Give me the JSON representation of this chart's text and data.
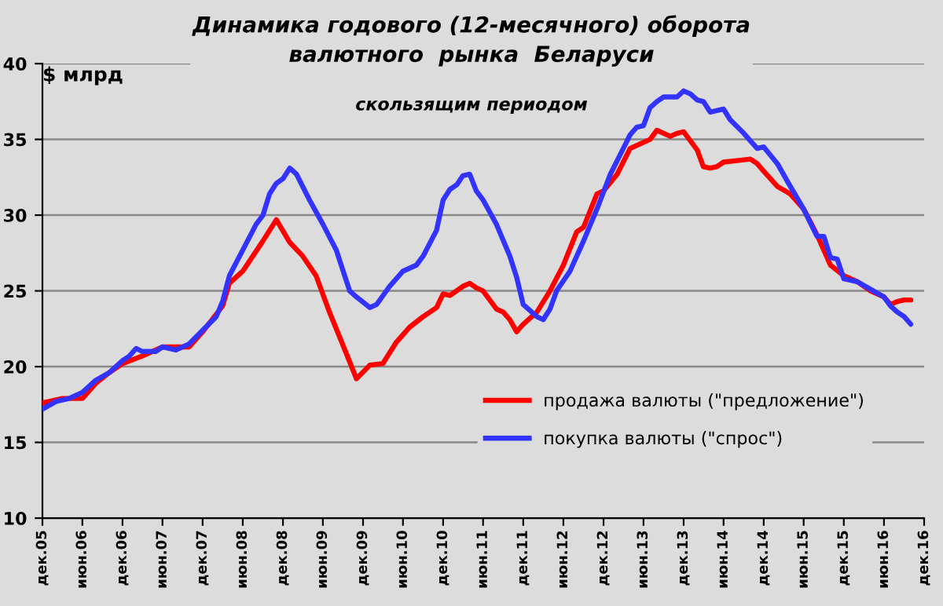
{
  "chart_data": {
    "type": "line",
    "title": "Динамика годового (12-месячного) оборота\nвалютного  рынка  Беларуси",
    "subtitle": "скользящим периодом",
    "ylabel": "$ млрд",
    "series": [
      {
        "name": "продажа валюты (\"предложение\")",
        "color": "#ff0000",
        "x": [
          "2005-12",
          "2006-03",
          "2006-06",
          "2006-08",
          "2006-10",
          "2006-12",
          "2007-03",
          "2007-06",
          "2007-09",
          "2007-10",
          "2007-12",
          "2008-03",
          "2008-04",
          "2008-06",
          "2008-09",
          "2008-11",
          "2009-01",
          "2009-03",
          "2009-05",
          "2009-07",
          "2009-09",
          "2009-11",
          "2010-01",
          "2010-03",
          "2010-05",
          "2010-07",
          "2010-09",
          "2010-11",
          "2010-12",
          "2011-01",
          "2011-03",
          "2011-04",
          "2011-05",
          "2011-06",
          "2011-08",
          "2011-09",
          "2011-10",
          "2011-11",
          "2011-12",
          "2012-02",
          "2012-04",
          "2012-06",
          "2012-08",
          "2012-09",
          "2012-11",
          "2012-12",
          "2013-02",
          "2013-04",
          "2013-06",
          "2013-07",
          "2013-08",
          "2013-09",
          "2013-10",
          "2013-11",
          "2013-12",
          "2014-02",
          "2014-03",
          "2014-04",
          "2014-05",
          "2014-06",
          "2014-08",
          "2014-10",
          "2014-11",
          "2014-12",
          "2015-02",
          "2015-04",
          "2015-06",
          "2015-08",
          "2015-10",
          "2015-12",
          "2016-02",
          "2016-04",
          "2016-06",
          "2016-07",
          "2016-08",
          "2016-09",
          "2016-10"
        ],
        "values": [
          17.6,
          17.9,
          17.9,
          18.9,
          19.6,
          20.2,
          20.7,
          21.3,
          21.3,
          21.3,
          22.3,
          24.0,
          25.5,
          26.3,
          28.3,
          29.7,
          28.2,
          27.3,
          26.0,
          23.6,
          21.4,
          19.2,
          20.1,
          20.2,
          21.6,
          22.6,
          23.3,
          23.9,
          24.8,
          24.7,
          25.3,
          25.5,
          25.2,
          25.0,
          23.8,
          23.6,
          23.1,
          22.3,
          22.8,
          23.6,
          25.0,
          26.7,
          28.9,
          29.2,
          31.4,
          31.6,
          32.7,
          34.4,
          34.8,
          35.0,
          35.6,
          35.4,
          35.2,
          35.4,
          35.5,
          34.3,
          33.2,
          33.1,
          33.2,
          33.5,
          33.6,
          33.7,
          33.4,
          32.9,
          31.9,
          31.4,
          30.4,
          28.7,
          26.7,
          26.0,
          25.6,
          25.0,
          24.6,
          24.1,
          24.3,
          24.4,
          24.4
        ]
      },
      {
        "name": "покупка валюты (\"спрос\")",
        "color": "#3333ff",
        "x": [
          "2005-12",
          "2006-02",
          "2006-04",
          "2006-06",
          "2006-08",
          "2006-10",
          "2006-12",
          "2007-01",
          "2007-02",
          "2007-03",
          "2007-05",
          "2007-06",
          "2007-08",
          "2007-10",
          "2007-12",
          "2008-02",
          "2008-03",
          "2008-04",
          "2008-06",
          "2008-08",
          "2008-09",
          "2008-10",
          "2008-11",
          "2008-12",
          "2009-01",
          "2009-02",
          "2009-04",
          "2009-06",
          "2009-08",
          "2009-10",
          "2009-11",
          "2010-01",
          "2010-02",
          "2010-04",
          "2010-06",
          "2010-08",
          "2010-09",
          "2010-11",
          "2010-12",
          "2011-01",
          "2011-02",
          "2011-03",
          "2011-04",
          "2011-05",
          "2011-06",
          "2011-08",
          "2011-10",
          "2011-11",
          "2011-12",
          "2012-01",
          "2012-02",
          "2012-03",
          "2012-04",
          "2012-05",
          "2012-07",
          "2012-09",
          "2012-11",
          "2013-01",
          "2013-03",
          "2013-04",
          "2013-05",
          "2013-06",
          "2013-07",
          "2013-08",
          "2013-09",
          "2013-10",
          "2013-11",
          "2013-12",
          "2014-01",
          "2014-02",
          "2014-03",
          "2014-04",
          "2014-05",
          "2014-06",
          "2014-07",
          "2014-09",
          "2014-11",
          "2014-12",
          "2015-02",
          "2015-04",
          "2015-06",
          "2015-07",
          "2015-08",
          "2015-09",
          "2015-10",
          "2015-11",
          "2015-12",
          "2016-02",
          "2016-04",
          "2016-06",
          "2016-07",
          "2016-08",
          "2016-09",
          "2016-10"
        ],
        "values": [
          17.2,
          17.7,
          17.9,
          18.3,
          19.1,
          19.6,
          20.4,
          20.7,
          21.2,
          21.0,
          21.0,
          21.3,
          21.1,
          21.5,
          22.4,
          23.3,
          24.3,
          26.0,
          27.7,
          29.4,
          30.0,
          31.4,
          32.1,
          32.4,
          33.1,
          32.7,
          31.0,
          29.4,
          27.7,
          25.0,
          24.6,
          23.9,
          24.1,
          25.3,
          26.3,
          26.7,
          27.3,
          29.0,
          31.0,
          31.7,
          32.0,
          32.6,
          32.7,
          31.6,
          31.0,
          29.4,
          27.3,
          25.9,
          24.1,
          23.7,
          23.3,
          23.1,
          23.8,
          25.0,
          26.3,
          28.3,
          30.4,
          32.7,
          34.4,
          35.3,
          35.8,
          35.9,
          37.1,
          37.5,
          37.8,
          37.8,
          37.8,
          38.2,
          38.0,
          37.6,
          37.5,
          36.8,
          36.9,
          37.0,
          36.3,
          35.4,
          34.4,
          34.5,
          33.4,
          31.9,
          30.4,
          29.5,
          28.6,
          28.6,
          27.2,
          27.1,
          25.8,
          25.6,
          25.1,
          24.6,
          24.0,
          23.6,
          23.3,
          22.8
        ]
      }
    ],
    "xlim": [
      "2005-12",
      "2016-12"
    ],
    "xticks": [
      {
        "value": "2005-12",
        "label": "дек.05"
      },
      {
        "value": "2006-06",
        "label": "июн.06"
      },
      {
        "value": "2006-12",
        "label": "дек.06"
      },
      {
        "value": "2007-06",
        "label": "июн.07"
      },
      {
        "value": "2007-12",
        "label": "дек.07"
      },
      {
        "value": "2008-06",
        "label": "июн.08"
      },
      {
        "value": "2008-12",
        "label": "дек.08"
      },
      {
        "value": "2009-06",
        "label": "июн.09"
      },
      {
        "value": "2009-12",
        "label": "дек.09"
      },
      {
        "value": "2010-06",
        "label": "июн.10"
      },
      {
        "value": "2010-12",
        "label": "дек.10"
      },
      {
        "value": "2011-06",
        "label": "июн.11"
      },
      {
        "value": "2011-12",
        "label": "дек.11"
      },
      {
        "value": "2012-06",
        "label": "июн.12"
      },
      {
        "value": "2012-12",
        "label": "дек.12"
      },
      {
        "value": "2013-06",
        "label": "июн.13"
      },
      {
        "value": "2013-12",
        "label": "дек.13"
      },
      {
        "value": "2014-06",
        "label": "июн.14"
      },
      {
        "value": "2014-12",
        "label": "дек.14"
      },
      {
        "value": "2015-06",
        "label": "июн.15"
      },
      {
        "value": "2015-12",
        "label": "дек.15"
      },
      {
        "value": "2016-06",
        "label": "июн.16"
      },
      {
        "value": "2016-12",
        "label": "дек.16"
      }
    ],
    "ylim": [
      10,
      40
    ],
    "yticks": [
      10,
      15,
      20,
      25,
      30,
      35,
      40
    ],
    "grid": "y",
    "legend": "bottom right",
    "line_style": "solid",
    "marker": "none"
  }
}
